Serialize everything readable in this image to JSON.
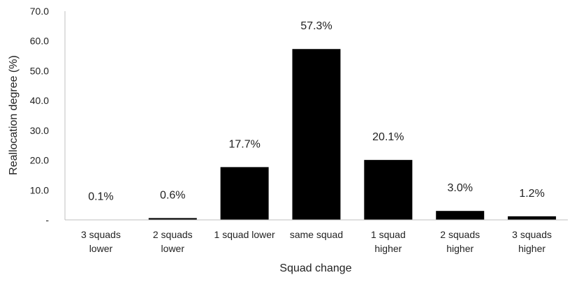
{
  "chart_data": {
    "type": "bar",
    "categories": [
      [
        "3 squads",
        "lower"
      ],
      [
        "2 squads",
        "lower"
      ],
      [
        "1 squad lower"
      ],
      [
        "same squad"
      ],
      [
        "1 squad",
        "higher"
      ],
      [
        "2 squads",
        "higher"
      ],
      [
        "3 squads",
        "higher"
      ]
    ],
    "values": [
      0.1,
      0.6,
      17.7,
      57.3,
      20.1,
      3.0,
      1.2
    ],
    "data_labels": [
      "0.1%",
      "0.6%",
      "17.7%",
      "57.3%",
      "20.1%",
      "3.0%",
      "1.2%"
    ],
    "xlabel": "Squad change",
    "ylabel": "Reallocation degree (%)",
    "ylim": [
      0,
      70
    ],
    "y_ticks": [
      0,
      10,
      20,
      30,
      40,
      50,
      60,
      70
    ],
    "y_tick_labels": [
      "-",
      "10.0",
      "20.0",
      "30.0",
      "40.0",
      "50.0",
      "60.0",
      "70.0"
    ],
    "bar_color": "#000000",
    "grid": false,
    "legend": "none"
  }
}
